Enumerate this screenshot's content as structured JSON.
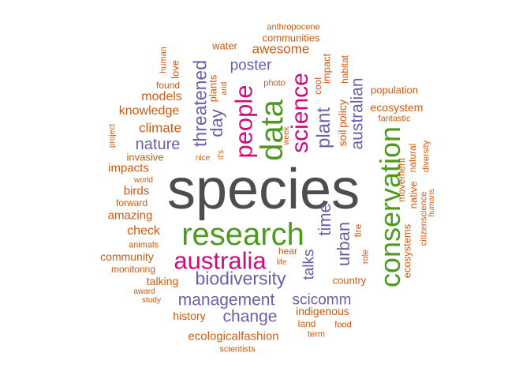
{
  "colors": {
    "gray": "#4d4d4d",
    "green": "#4e9a1e",
    "pink": "#d10a7a",
    "purple": "#6a5fa8",
    "orange": "#cf5a10"
  },
  "words": {
    "species": "species",
    "research": "research",
    "conservation": "conservation",
    "data": "data",
    "australia": "australia",
    "science": "science",
    "people": "people",
    "biodiversity": "biodiversity",
    "management": "management",
    "threatened": "threatened",
    "plant": "plant",
    "time": "time",
    "urban": "urban",
    "australian": "australian",
    "change": "change",
    "scicomm": "scicomm",
    "talks": "talks",
    "day": "day",
    "nature": "nature",
    "poster": "poster",
    "awesome": "awesome",
    "climate": "climate",
    "knowledge": "knowledge",
    "models": "models",
    "impacts": "impacts",
    "invasive": "invasive",
    "birds": "birds",
    "amazing": "amazing",
    "check": "check",
    "community": "community",
    "talking": "talking",
    "history": "history",
    "ecologicalfashion": "ecologicalfashion",
    "indigenous": "indigenous",
    "country": "country",
    "ecosystem": "ecosystem",
    "ecosystems": "ecosystems",
    "movement": "movement",
    "native": "native",
    "natural": "natural",
    "soil": "soil",
    "policy": "policy",
    "communities": "communities",
    "anthropocene": "anthropocene",
    "water": "water",
    "impact": "impact",
    "cool": "cool",
    "habitat": "habitat",
    "population": "population",
    "fantastic": "fantastic",
    "diversity": "diversity",
    "citizenscience": "citizenscience",
    "humans": "humans",
    "human": "human",
    "love": "love",
    "found": "found",
    "plants": "plants",
    "arid": "arid",
    "photo": "photo",
    "week": "week",
    "its": "it's",
    "nice": "nice",
    "project": "project",
    "world": "world",
    "forward": "forward",
    "animals": "animals",
    "monitoring": "monitoring",
    "award": "award",
    "study": "study",
    "scientists": "scientists",
    "term": "term",
    "land": "land",
    "food": "food",
    "fire": "fire",
    "role": "role",
    "hear": "hear",
    "life": "life"
  }
}
